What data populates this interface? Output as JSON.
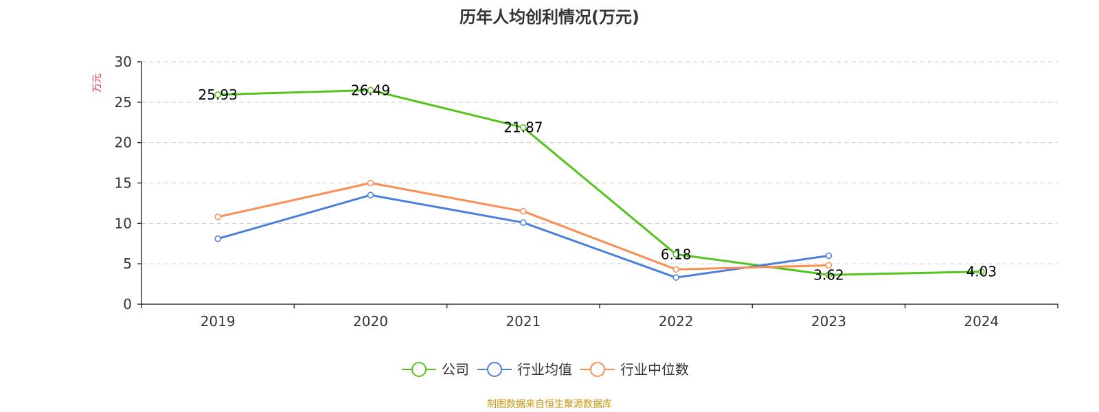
{
  "chart_data": {
    "type": "line",
    "title": "历年人均创利情况(万元)",
    "ylabel": "万元",
    "categories": [
      "2019",
      "2020",
      "2021",
      "2022",
      "2023",
      "2024"
    ],
    "ylim": [
      0,
      30
    ],
    "yticks": [
      0,
      5,
      10,
      15,
      20,
      25,
      30
    ],
    "grid": true,
    "legend_position": "bottom-center",
    "series": [
      {
        "name": "公司",
        "color": "#52c41a",
        "values": [
          25.93,
          26.49,
          21.87,
          6.18,
          3.62,
          4.03
        ],
        "labels": [
          "25.93",
          "26.49",
          "21.87",
          "6.18",
          "3.62",
          "4.03"
        ]
      },
      {
        "name": "行业均值",
        "color": "#4a7fdb",
        "values": [
          8.1,
          13.5,
          10.1,
          3.3,
          6.0,
          null
        ]
      },
      {
        "name": "行业中位数",
        "color": "#f98d52",
        "values": [
          10.8,
          15.0,
          11.5,
          4.3,
          4.8,
          null
        ]
      }
    ],
    "source": "制图数据来自恒生聚源数据库"
  }
}
